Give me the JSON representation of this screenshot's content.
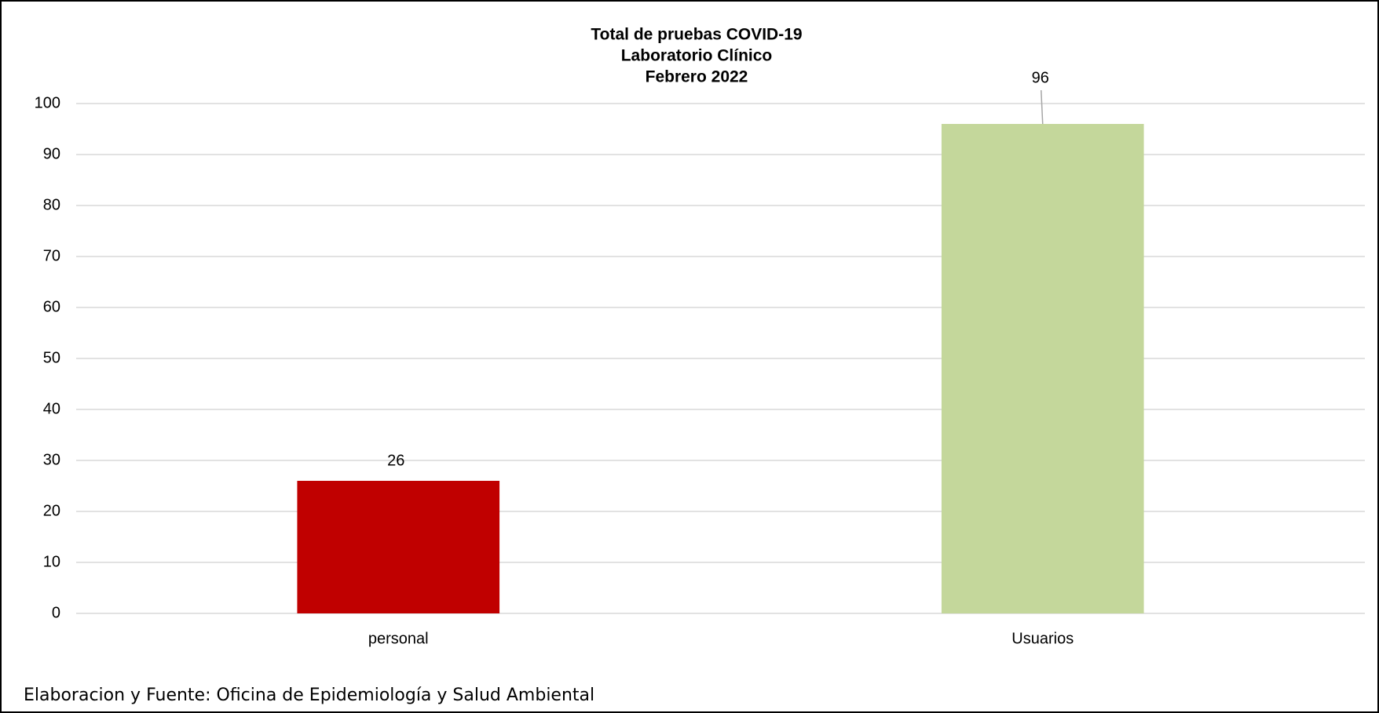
{
  "chart_data": {
    "type": "bar",
    "title": [
      "Total de pruebas COVID-19",
      "Laboratorio Clínico",
      "Febrero 2022"
    ],
    "categories": [
      "personal",
      "Usuarios"
    ],
    "values": [
      26,
      96
    ],
    "colors": [
      "#c00000",
      "#c4d79b"
    ],
    "ylim": [
      0,
      100
    ],
    "yticks": [
      0,
      10,
      20,
      30,
      40,
      50,
      60,
      70,
      80,
      90,
      100
    ],
    "grid": true,
    "source": "Elaboracion y Fuente: Oficina de Epidemiología y Salud Ambiental"
  }
}
